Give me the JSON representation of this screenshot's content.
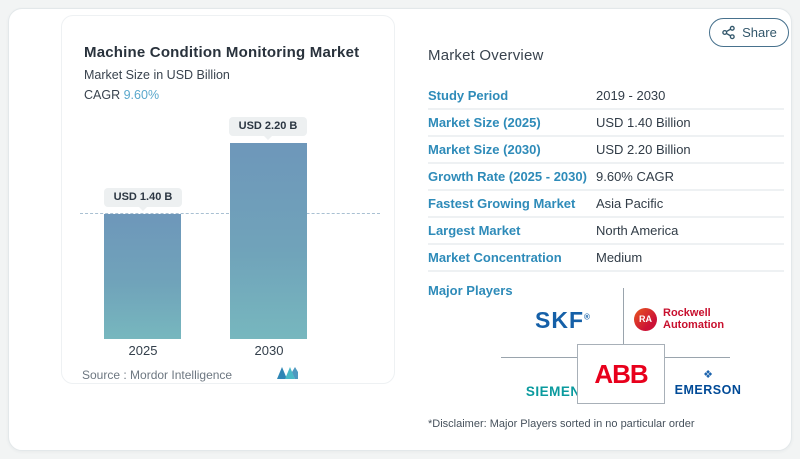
{
  "share": {
    "label": "Share"
  },
  "chart": {
    "title": "Machine Condition Monitoring Market",
    "subtitle": "Market Size in USD Billion",
    "cagr_label": "CAGR",
    "cagr_value": "9.60%",
    "source_label": "Source :",
    "source_value": "Mordor Intelligence"
  },
  "chart_data": {
    "type": "bar",
    "title": "Machine Condition Monitoring Market",
    "ylabel": "Market Size in USD Billion",
    "categories": [
      "2025",
      "2030"
    ],
    "values": [
      1.4,
      2.2
    ],
    "bar_labels": [
      "USD 1.40 B",
      "USD 2.20 B"
    ],
    "ylim": [
      0,
      2.2
    ],
    "reference_line": 1.4,
    "grid": false,
    "legend": "none",
    "bar_color_top": "#6e97ba",
    "bar_color_bottom": "#77b7be"
  },
  "overview": {
    "title": "Market Overview",
    "rows": [
      {
        "label": "Study Period",
        "value": "2019 - 2030"
      },
      {
        "label": "Market Size (2025)",
        "value": "USD 1.40 Billion"
      },
      {
        "label": "Market Size (2030)",
        "value": "USD 2.20 Billion"
      },
      {
        "label": "Growth Rate (2025 - 2030)",
        "value": "9.60% CAGR"
      },
      {
        "label": "Fastest Growing Market",
        "value": "Asia Pacific"
      },
      {
        "label": "Largest Market",
        "value": "North America"
      },
      {
        "label": "Market Concentration",
        "value": "Medium"
      }
    ],
    "major_players_label": "Major Players",
    "players": {
      "skf": "SKF",
      "skf_reg": "®",
      "rockwell_badge": "RA",
      "rockwell_line1": "Rockwell",
      "rockwell_line2": "Automation",
      "siemens": "SIEMENS",
      "abb": "ABB",
      "emerson": "EMERSON",
      "emerson_icon": "❖"
    },
    "disclaimer": "*Disclaimer: Major Players sorted in no particular order"
  },
  "colors": {
    "label_blue": "#2e8bb9",
    "cagr_blue": "#5aa8cc",
    "skf_blue": "#1560a8",
    "rockwell_red": "#c8102e",
    "siemens_teal": "#0a9a9e",
    "abb_red": "#e8001c",
    "emerson_blue": "#004a97",
    "mi_logo_blue": "#2f86b5",
    "mi_logo_teal": "#49b9c7"
  }
}
